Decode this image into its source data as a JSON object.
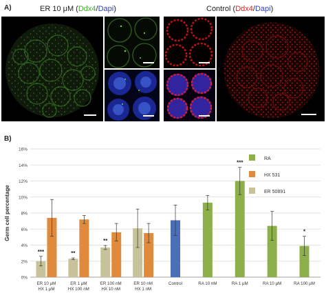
{
  "panel_a": {
    "label": "A)",
    "left_title": {
      "prefix": "ER 10 μM (",
      "marker": "Ddx4",
      "slash": "/",
      "stain": "Dapi",
      "suffix": ")"
    },
    "right_title": {
      "prefix": "Control (",
      "marker": "Ddx4",
      "slash": "/",
      "stain": "Dapi",
      "suffix": ")"
    },
    "colors": {
      "marker_green": "#3fae2a",
      "marker_red": "#d42020",
      "stain_blue": "#2b3fd0"
    }
  },
  "panel_b": {
    "label": "B)"
  },
  "chart_data": {
    "type": "bar",
    "ylabel": "Germ cell percentage",
    "xlabel": "",
    "ylim": [
      0,
      16
    ],
    "yticks": [
      "0%",
      "2%",
      "4%",
      "6%",
      "8%",
      "10%",
      "12%",
      "14%",
      "16%"
    ],
    "grid": true,
    "legend_position": "top-right",
    "legend": [
      {
        "name": "RA",
        "color": "#8db04b"
      },
      {
        "name": "HX 531",
        "color": "#df8a3c"
      },
      {
        "name": "ER 50891",
        "color": "#c8c29a"
      }
    ],
    "groups": [
      {
        "label1": "ER 10 μM",
        "label2": "HX 1 μM",
        "bars": [
          {
            "series": "ER 50891",
            "value": 2.0,
            "err": 0.6,
            "sig": "***"
          },
          {
            "series": "HX 531",
            "value": 7.4,
            "err": 2.3,
            "sig": ""
          }
        ]
      },
      {
        "label1": "ER 1 μM",
        "label2": "HX 100 nM",
        "bars": [
          {
            "series": "ER 50891",
            "value": 2.3,
            "err": 0.1,
            "sig": "**"
          },
          {
            "series": "HX 531",
            "value": 7.2,
            "err": 0.5,
            "sig": ""
          }
        ]
      },
      {
        "label1": "ER 100 nM",
        "label2": "HX 10 nM",
        "bars": [
          {
            "series": "ER 50891",
            "value": 3.7,
            "err": 0.25,
            "sig": "**"
          },
          {
            "series": "HX 531",
            "value": 5.6,
            "err": 1.1,
            "sig": ""
          }
        ]
      },
      {
        "label1": "ER 10 nM",
        "label2": "HX 1 nM",
        "bars": [
          {
            "series": "ER 50891",
            "value": 6.1,
            "err": 2.4,
            "sig": ""
          },
          {
            "series": "HX 531",
            "value": 5.5,
            "err": 1.2,
            "sig": ""
          }
        ]
      },
      {
        "label1": "Control",
        "label2": "",
        "bars": [
          {
            "series": "Control",
            "value": 7.1,
            "err": 1.9,
            "sig": "",
            "color": "#4a6fb8"
          }
        ]
      },
      {
        "label1": "RA 10 nM",
        "label2": "",
        "bars": [
          {
            "series": "RA",
            "value": 9.3,
            "err": 0.9,
            "sig": ""
          }
        ]
      },
      {
        "label1": "RA 1 μM",
        "label2": "",
        "bars": [
          {
            "series": "RA",
            "value": 12.0,
            "err": 1.7,
            "sig": "***"
          }
        ]
      },
      {
        "label1": "RA 10 μM",
        "label2": "",
        "bars": [
          {
            "series": "RA",
            "value": 6.4,
            "err": 1.8,
            "sig": ""
          }
        ]
      },
      {
        "label1": "RA 100 μM",
        "label2": "",
        "bars": [
          {
            "series": "RA",
            "value": 3.9,
            "err": 1.2,
            "sig": "*"
          }
        ]
      }
    ]
  }
}
